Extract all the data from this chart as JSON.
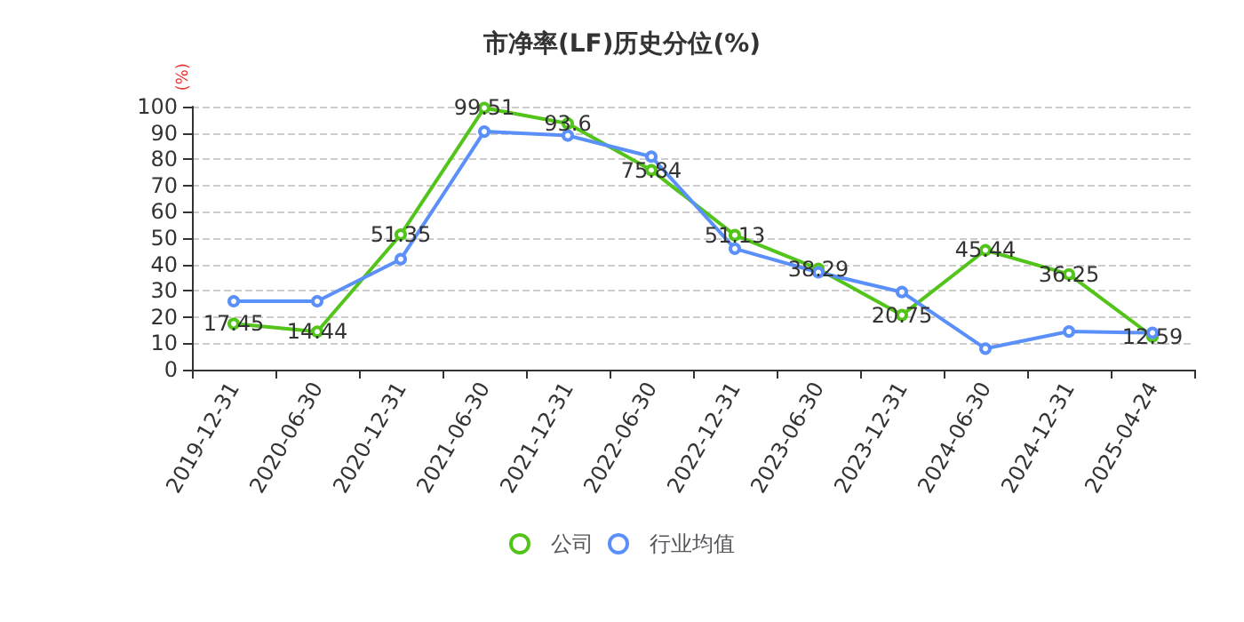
{
  "chart_data": {
    "type": "line",
    "title": "市净率(LF)历史分位(%)",
    "ylabel": "(%)",
    "categories": [
      "2019-12-31",
      "2020-06-30",
      "2020-12-31",
      "2021-06-30",
      "2021-12-31",
      "2022-06-30",
      "2022-12-31",
      "2023-06-30",
      "2023-12-31",
      "2024-06-30",
      "2024-12-31",
      "2025-04-24"
    ],
    "series": [
      {
        "name": "公司",
        "color": "#52c41a",
        "values": [
          17.45,
          14.44,
          51.35,
          99.51,
          93.6,
          75.84,
          51.13,
          38.29,
          20.75,
          45.44,
          36.25,
          12.59
        ],
        "value_labels": [
          "17.45",
          "14.44",
          "51.35",
          "99.51",
          "93.6",
          "75.84",
          "51.13",
          "38.29",
          "20.75",
          "45.44",
          "36.25",
          "12.59"
        ]
      },
      {
        "name": "行业均值",
        "color": "#5b8ff9",
        "values": [
          26,
          26,
          42,
          90.5,
          89,
          81,
          46,
          37,
          29.5,
          8,
          14.5,
          14
        ]
      }
    ],
    "ylim": [
      0,
      100
    ],
    "yticks": [
      0,
      10,
      20,
      30,
      40,
      50,
      60,
      70,
      80,
      90,
      100
    ],
    "grid": "y",
    "legend": "bottom",
    "marker": "circle",
    "line_style": "solid"
  }
}
